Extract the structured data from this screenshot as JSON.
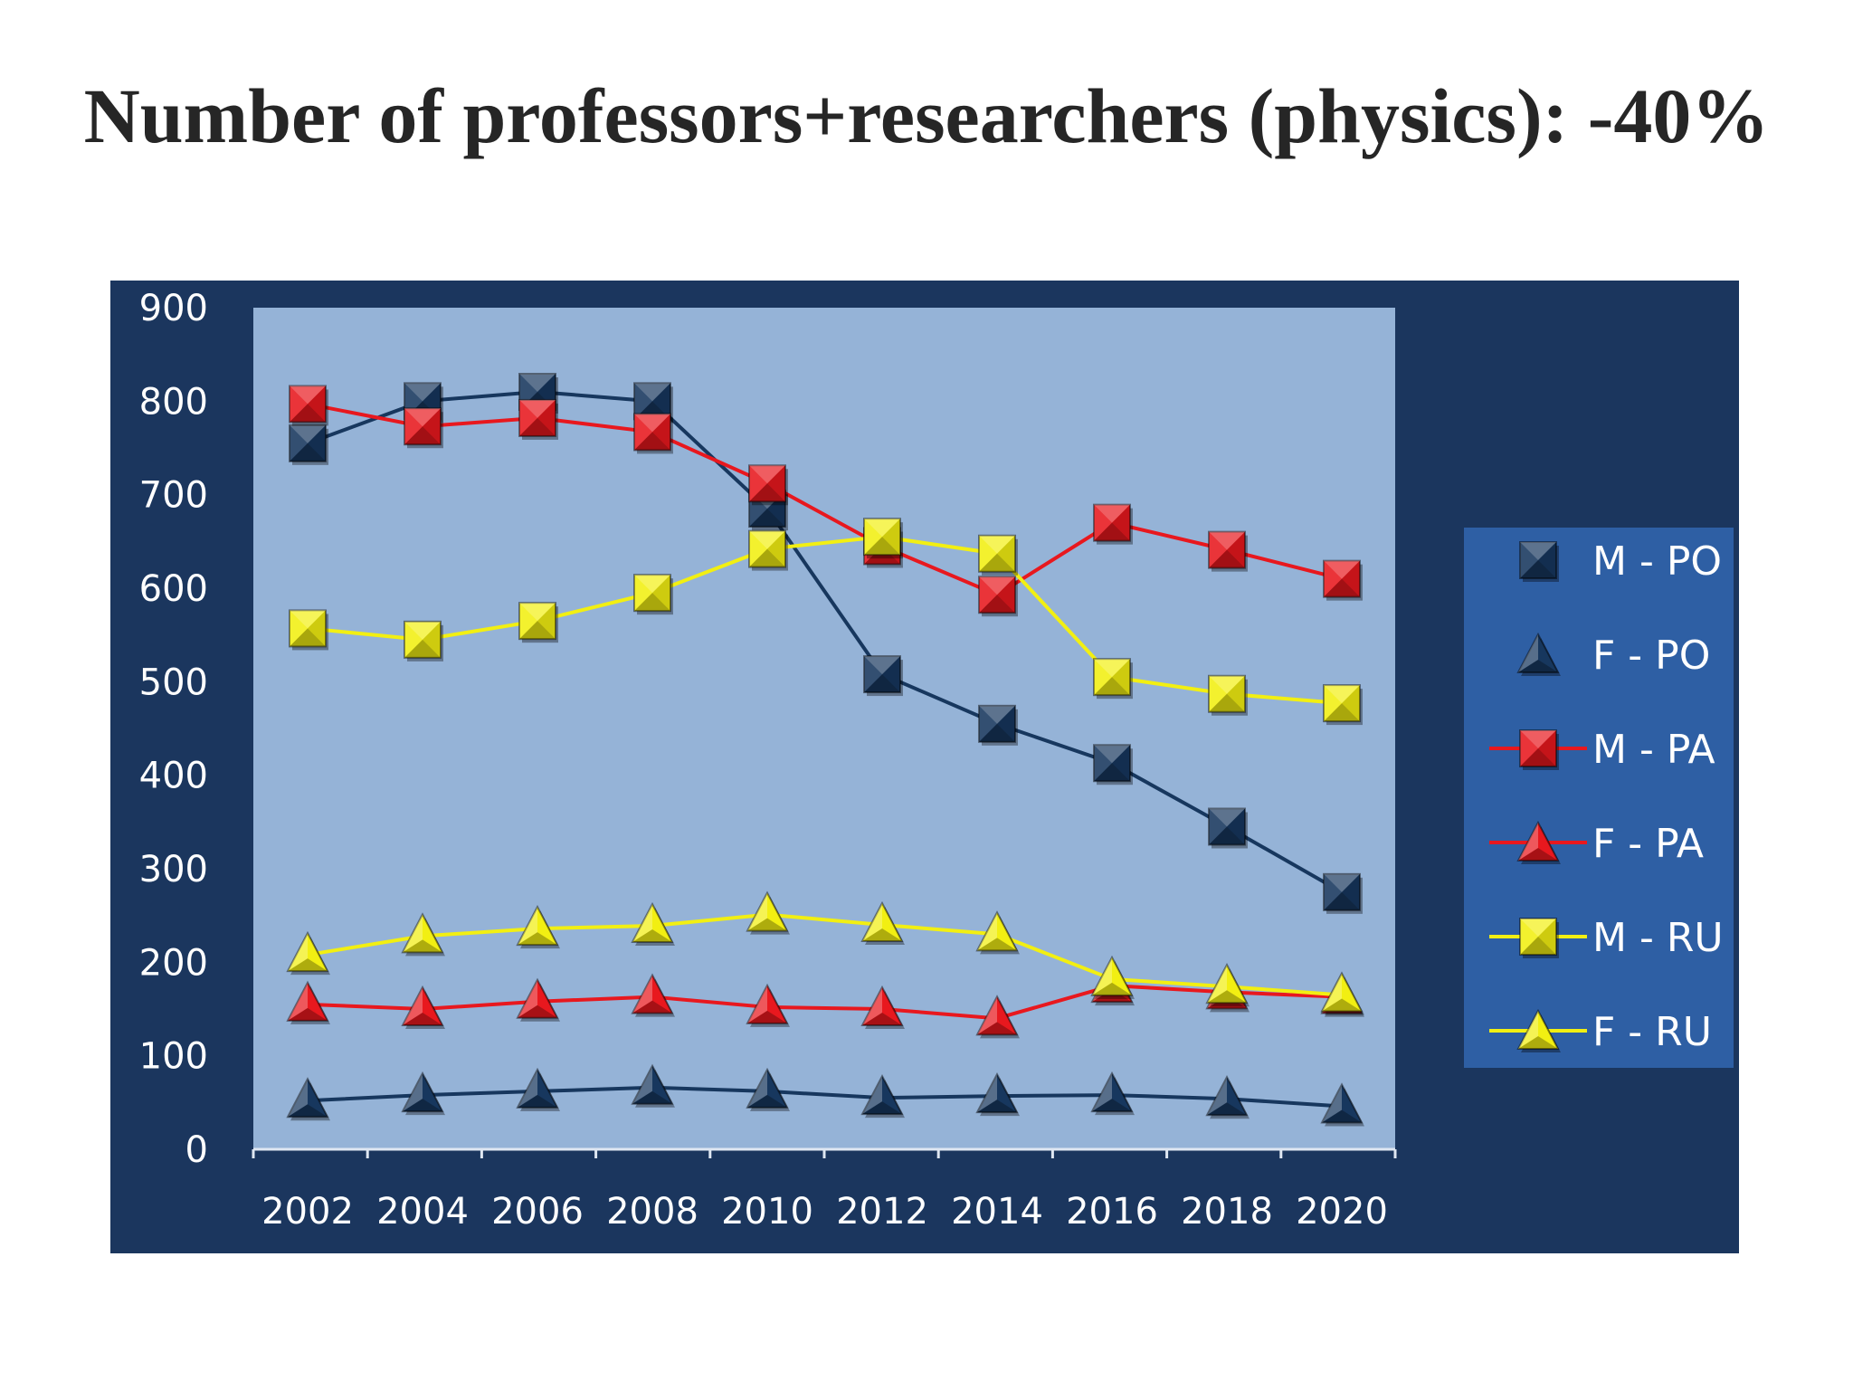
{
  "title": "Number of professors+researchers (physics): -40%",
  "chart_data": {
    "type": "line",
    "title": "Number of professors+researchers (physics): -40%",
    "x": [
      "2002",
      "2004",
      "2006",
      "2008",
      "2010",
      "2012",
      "2014",
      "2016",
      "2018",
      "2020"
    ],
    "ylim": [
      0,
      900
    ],
    "yticks": [
      0,
      100,
      200,
      300,
      400,
      500,
      600,
      700,
      800,
      900
    ],
    "grid": false,
    "legend_position": "right",
    "colors": {
      "frame": "#1b365e",
      "plot_area": "#95b3d7",
      "legend_bg": "#2e5fa4",
      "navy": "#17375e",
      "red": "#e8181e",
      "yellow": "#f2ef12"
    },
    "series": [
      {
        "name": "M - PO",
        "marker": "square",
        "color": "navy",
        "values": [
          755,
          800,
          810,
          800,
          685,
          508,
          455,
          413,
          345,
          275
        ]
      },
      {
        "name": "F - PO",
        "marker": "triangle",
        "color": "navy",
        "values": [
          52,
          58,
          62,
          66,
          62,
          55,
          57,
          58,
          54,
          46
        ]
      },
      {
        "name": "M - PA",
        "marker": "square",
        "color": "red",
        "values": [
          797,
          773,
          782,
          767,
          712,
          645,
          593,
          670,
          641,
          610
        ]
      },
      {
        "name": "F - PA",
        "marker": "triangle",
        "color": "red",
        "values": [
          155,
          150,
          158,
          163,
          152,
          150,
          140,
          175,
          168,
          163
        ]
      },
      {
        "name": "M - RU",
        "marker": "square",
        "color": "yellow",
        "values": [
          557,
          545,
          565,
          595,
          642,
          655,
          637,
          505,
          487,
          477
        ]
      },
      {
        "name": "F - RU",
        "marker": "triangle",
        "color": "yellow",
        "values": [
          208,
          228,
          236,
          239,
          251,
          240,
          230,
          182,
          174,
          165
        ]
      }
    ]
  }
}
